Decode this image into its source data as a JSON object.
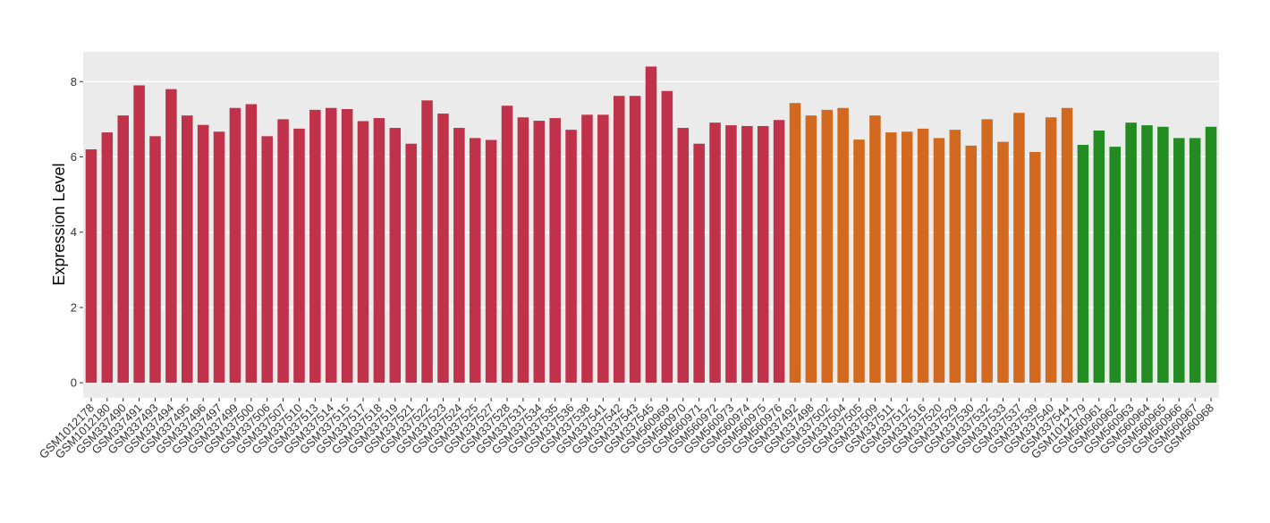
{
  "chart_data": {
    "type": "bar",
    "y_label": "Expression Level",
    "categories": [
      "GSM1012178",
      "GSM1012180",
      "GSM337490",
      "GSM337491",
      "GSM337493",
      "GSM337494",
      "GSM337495",
      "GSM337496",
      "GSM337497",
      "GSM337499",
      "GSM337500",
      "GSM337506",
      "GSM337507",
      "GSM337510",
      "GSM337513",
      "GSM337514",
      "GSM337515",
      "GSM337517",
      "GSM337518",
      "GSM337519",
      "GSM337521",
      "GSM337522",
      "GSM337523",
      "GSM337524",
      "GSM337525",
      "GSM337527",
      "GSM337528",
      "GSM337531",
      "GSM337534",
      "GSM337535",
      "GSM337536",
      "GSM337538",
      "GSM337541",
      "GSM337542",
      "GSM337543",
      "GSM337545",
      "GSM560969",
      "GSM560970",
      "GSM560971",
      "GSM560972",
      "GSM560973",
      "GSM560974",
      "GSM560975",
      "GSM560976",
      "GSM337492",
      "GSM337498",
      "GSM337502",
      "GSM337504",
      "GSM337505",
      "GSM337509",
      "GSM337511",
      "GSM337512",
      "GSM337516",
      "GSM337520",
      "GSM337529",
      "GSM337530",
      "GSM337532",
      "GSM337533",
      "GSM337537",
      "GSM337539",
      "GSM337540",
      "GSM337544",
      "GSM1012179",
      "GSM560961",
      "GSM560962",
      "GSM560963",
      "GSM560964",
      "GSM560965",
      "GSM560966",
      "GSM560967",
      "GSM560968"
    ],
    "series": [
      {
        "color": "#c0314a",
        "values": [
          6.2,
          6.65,
          7.1,
          7.9,
          6.55,
          7.8,
          7.1,
          6.85,
          6.67,
          7.3,
          7.4,
          6.55,
          7.0,
          6.75,
          7.25,
          7.3,
          7.27,
          6.95,
          7.03,
          6.77,
          6.35,
          7.5,
          7.15,
          6.77,
          6.5,
          6.45,
          7.36,
          7.05,
          6.96,
          7.03,
          6.72,
          7.12,
          7.12,
          7.62,
          7.62,
          8.4,
          7.75,
          6.77,
          6.35,
          6.91,
          6.84,
          6.82,
          6.82,
          6.98,
          null,
          null,
          null,
          null,
          null,
          null,
          null,
          null,
          null,
          null,
          null,
          null,
          null,
          null,
          null,
          null,
          null,
          null,
          null,
          null,
          null,
          null,
          null,
          null,
          null,
          null,
          null
        ]
      },
      {
        "color": "#d2691e",
        "values": [
          null,
          null,
          null,
          null,
          null,
          null,
          null,
          null,
          null,
          null,
          null,
          null,
          null,
          null,
          null,
          null,
          null,
          null,
          null,
          null,
          null,
          null,
          null,
          null,
          null,
          null,
          null,
          null,
          null,
          null,
          null,
          null,
          null,
          null,
          null,
          null,
          null,
          null,
          null,
          null,
          null,
          null,
          null,
          null,
          7.43,
          7.1,
          7.25,
          7.3,
          6.46,
          7.1,
          6.65,
          6.67,
          6.75,
          6.5,
          6.72,
          6.3,
          7.0,
          6.4,
          7.17,
          6.13,
          7.05,
          7.3,
          null,
          null,
          null,
          null,
          null,
          null,
          null,
          null,
          null
        ]
      },
      {
        "color": "#228b22",
        "values": [
          null,
          null,
          null,
          null,
          null,
          null,
          null,
          null,
          null,
          null,
          null,
          null,
          null,
          null,
          null,
          null,
          null,
          null,
          null,
          null,
          null,
          null,
          null,
          null,
          null,
          null,
          null,
          null,
          null,
          null,
          null,
          null,
          null,
          null,
          null,
          null,
          null,
          null,
          null,
          null,
          null,
          null,
          null,
          null,
          null,
          null,
          null,
          null,
          null,
          null,
          null,
          null,
          null,
          null,
          null,
          null,
          null,
          null,
          null,
          null,
          null,
          null,
          6.32,
          6.7,
          6.27,
          6.91,
          6.84,
          6.8,
          6.5,
          6.5,
          6.8
        ]
      }
    ],
    "ylim": [
      -0.4,
      8.79
    ],
    "yticks": [
      0,
      2,
      4,
      6,
      8
    ],
    "grid": true
  }
}
